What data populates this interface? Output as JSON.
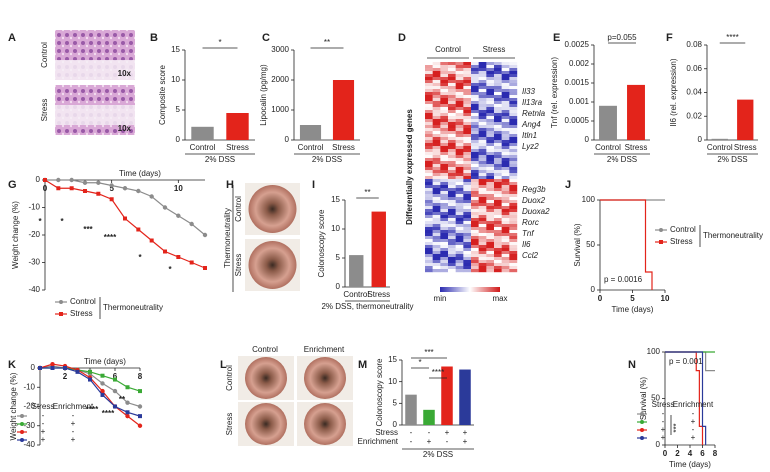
{
  "chart_data": [
    {
      "type": "image",
      "panel": "A",
      "rows": [
        "Control",
        "Stress"
      ],
      "labels": [
        "10x",
        "10x"
      ]
    },
    {
      "type": "bar",
      "panel": "B",
      "ylabel": "Composite score",
      "categories": [
        "Control",
        "Stress"
      ],
      "values": [
        2.2,
        4.5
      ],
      "colors": [
        "#8c8c8c",
        "#e3241b"
      ],
      "ylim": [
        0,
        15
      ],
      "yticks": [
        0,
        5,
        10,
        15
      ],
      "xlabel": "2% DSS",
      "significance": [
        "*"
      ]
    },
    {
      "type": "bar",
      "panel": "C",
      "ylabel": "Lipocalin (pg/mg)",
      "categories": [
        "Control",
        "Stress"
      ],
      "values": [
        500,
        2000
      ],
      "colors": [
        "#8c8c8c",
        "#e3241b"
      ],
      "ylim": [
        0,
        3000
      ],
      "yticks": [
        0,
        1000,
        2000,
        3000
      ],
      "xlabel": "2% DSS",
      "significance": [
        "**"
      ]
    },
    {
      "type": "heatmap",
      "panel": "D",
      "ylabel": "Differentially expressed genes",
      "groups": [
        "Control",
        "Stress"
      ],
      "genes_top": [
        "Il33",
        "Il13ra",
        "Retnla",
        "Ang4",
        "Itln1",
        "Lyz2"
      ],
      "genes_bottom": [
        "Reg3b",
        "Duox2",
        "Duoxa2",
        "Rorc",
        "Tnf",
        "Il6",
        "Ccl2"
      ],
      "scale": [
        "min",
        "max"
      ]
    },
    {
      "type": "bar",
      "panel": "E",
      "ylabel": "Tnf (rel. expression)",
      "categories": [
        "Control",
        "Stress"
      ],
      "values": [
        0.0009,
        0.00145
      ],
      "colors": [
        "#8c8c8c",
        "#e3241b"
      ],
      "ylim": [
        0,
        0.0025
      ],
      "yticks": [
        0,
        0.0005,
        0.001,
        0.0015,
        0.002,
        0.0025
      ],
      "xlabel": "2% DSS",
      "significance": [
        "p=0.055"
      ]
    },
    {
      "type": "bar",
      "panel": "F",
      "ylabel": "Il6 (rel. expression)",
      "categories": [
        "Control",
        "Stress"
      ],
      "values": [
        0.001,
        0.034
      ],
      "colors": [
        "#8c8c8c",
        "#e3241b"
      ],
      "ylim": [
        0,
        0.08
      ],
      "yticks": [
        0,
        0.02,
        0.04,
        0.06,
        0.08
      ],
      "xlabel": "2% DSS",
      "significance": [
        "****"
      ]
    },
    {
      "type": "line",
      "panel": "G",
      "ylabel": "Weight change (%)",
      "xlabel": "Time (days)",
      "x": [
        0,
        1,
        2,
        3,
        4,
        5,
        6,
        7,
        8,
        9,
        10,
        11,
        12
      ],
      "xlim": [
        0,
        12
      ],
      "xticks": [
        0,
        5,
        10
      ],
      "ylim": [
        -40,
        0
      ],
      "yticks": [
        0,
        -10,
        -20,
        -30,
        -40
      ],
      "series": [
        {
          "name": "Control",
          "color": "#8c8c8c",
          "values": [
            0,
            0,
            0,
            -1,
            -1,
            -2,
            -3,
            -4,
            -6,
            -10,
            -13,
            -16,
            -20
          ]
        },
        {
          "name": "Stress",
          "color": "#e3241b",
          "values": [
            0,
            -3,
            -3,
            -4,
            -5,
            -7,
            -14,
            -18,
            -22,
            -26,
            -28,
            -30,
            -32
          ]
        }
      ],
      "group": "Thermoneutrality",
      "annotations": [
        "*",
        "*",
        "***",
        "****",
        "*",
        "*"
      ]
    },
    {
      "type": "image",
      "panel": "H",
      "rows": [
        "Control",
        "Stress"
      ],
      "group": "Thermoneutrality"
    },
    {
      "type": "bar",
      "panel": "I",
      "ylabel": "Colonoscopy score",
      "categories": [
        "Control",
        "Stress"
      ],
      "values": [
        5.5,
        13
      ],
      "colors": [
        "#8c8c8c",
        "#e3241b"
      ],
      "ylim": [
        0,
        15
      ],
      "yticks": [
        0,
        5,
        10,
        15
      ],
      "xlabel": "2% DSS, thermoneutrality",
      "significance": [
        "**"
      ]
    },
    {
      "type": "step",
      "panel": "J",
      "ylabel": "Survival (%)",
      "xlabel": "Time (days)",
      "xlim": [
        0,
        10
      ],
      "xticks": [
        0,
        5,
        10
      ],
      "ylim": [
        0,
        100
      ],
      "yticks": [
        0,
        50,
        100
      ],
      "series": [
        {
          "name": "Control",
          "color": "#8c8c8c",
          "x": [
            0,
            10
          ],
          "values": [
            100,
            100
          ]
        },
        {
          "name": "Stress",
          "color": "#e3241b",
          "x": [
            0,
            7,
            8
          ],
          "values": [
            100,
            20,
            0
          ]
        }
      ],
      "group": "Thermoneutrality",
      "pvalue": "p = 0.0016"
    },
    {
      "type": "line",
      "panel": "K",
      "ylabel": "Weight change (%)",
      "xlabel": "Time (days)",
      "x": [
        0,
        1,
        2,
        3,
        4,
        5,
        6,
        7,
        8
      ],
      "xlim": [
        0,
        8
      ],
      "xticks": [
        2,
        4,
        6,
        8
      ],
      "ylim": [
        -40,
        0
      ],
      "yticks": [
        0,
        -10,
        -20,
        -30,
        -40
      ],
      "legend_headers": [
        "Stress",
        "Enrichment"
      ],
      "series": [
        {
          "stress": "-",
          "enrichment": "-",
          "color": "#8c8c8c",
          "values": [
            0,
            1,
            0,
            -1,
            -3,
            -8,
            -12,
            -18,
            -20
          ]
        },
        {
          "stress": "-",
          "enrichment": "+",
          "color": "#3aa935",
          "values": [
            0,
            0,
            0,
            -1,
            -2,
            -4,
            -6,
            -10,
            -12
          ]
        },
        {
          "stress": "+",
          "enrichment": "-",
          "color": "#e3241b",
          "values": [
            0,
            2,
            1,
            -1,
            -5,
            -12,
            -20,
            -25,
            -30
          ]
        },
        {
          "stress": "+",
          "enrichment": "+",
          "color": "#2b3a9a",
          "values": [
            0,
            0,
            0,
            -2,
            -6,
            -14,
            -20,
            -23,
            -25
          ]
        }
      ],
      "annotations": [
        "****",
        "****",
        "**"
      ]
    },
    {
      "type": "image",
      "panel": "L",
      "columns": [
        "Control",
        "Enrichment"
      ],
      "rows": [
        "Control",
        "Stress"
      ]
    },
    {
      "type": "bar",
      "panel": "M",
      "ylabel": "Colonoscopy score",
      "values": [
        7,
        3.5,
        13.5,
        12.8
      ],
      "colors": [
        "#8c8c8c",
        "#3aa935",
        "#e3241b",
        "#2b3a9a"
      ],
      "ylim": [
        0,
        15
      ],
      "yticks": [
        0,
        5,
        10,
        15
      ],
      "xlabel": "2% DSS",
      "rows": [
        {
          "name": "Stress",
          "color": "#222222",
          "values": [
            "-",
            "-",
            "+",
            "+"
          ]
        },
        {
          "name": "Enrichment",
          "color": "#3aa935",
          "values": [
            "-",
            "+",
            "-",
            "+"
          ]
        }
      ],
      "significance": [
        "***",
        "*",
        "****"
      ]
    },
    {
      "type": "step",
      "panel": "N",
      "ylabel": "Survival (%)",
      "xlabel": "Time (days)",
      "xlim": [
        0,
        8
      ],
      "xticks": [
        0,
        2,
        4,
        6,
        8
      ],
      "ylim": [
        0,
        100
      ],
      "yticks": [
        0,
        50,
        100
      ],
      "legend_headers": [
        "Stress",
        "Enrichment"
      ],
      "series": [
        {
          "stress": "-",
          "enrichment": "-",
          "color": "#8c8c8c",
          "x": [
            0,
            6.5,
            8
          ],
          "values": [
            100,
            80,
            80
          ]
        },
        {
          "stress": "-",
          "enrichment": "+",
          "color": "#3aa935",
          "x": [
            0,
            8
          ],
          "values": [
            100,
            100
          ]
        },
        {
          "stress": "+",
          "enrichment": "-",
          "color": "#e3241b",
          "x": [
            0,
            5,
            5.5,
            6
          ],
          "values": [
            100,
            80,
            20,
            0
          ]
        },
        {
          "stress": "+",
          "enrichment": "+",
          "color": "#2b3a9a",
          "x": [
            0,
            6,
            6.5
          ],
          "values": [
            100,
            20,
            0
          ]
        }
      ],
      "pvalue": "p = 0.001",
      "significance": [
        "***"
      ]
    }
  ]
}
